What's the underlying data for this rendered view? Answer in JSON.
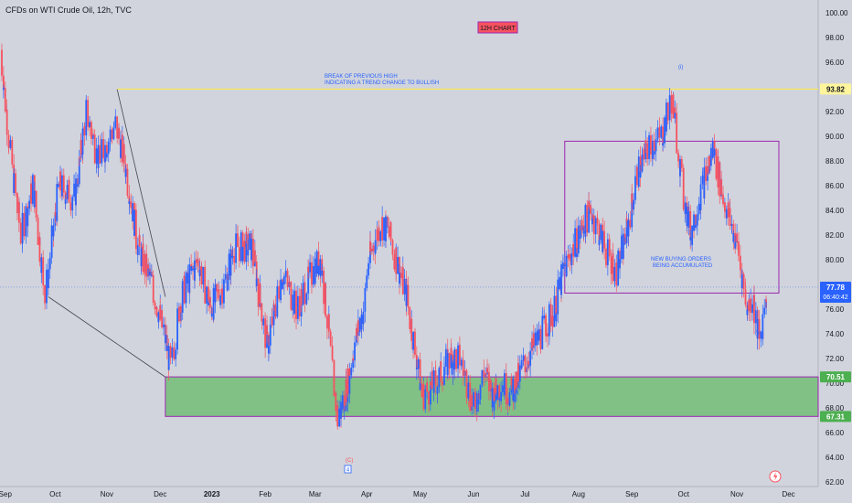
{
  "symbol_title": "CFDs on WTI Crude Oil, 12h, TVC",
  "chart_badge": "12H CHART",
  "price_tags": [
    {
      "label": "93.82",
      "value": 93.82,
      "bg": "#fff59d",
      "fg": "#131722"
    },
    {
      "label": "70.51",
      "value": 70.51,
      "bg": "#4caf50",
      "fg": "#ffffff"
    },
    {
      "label": "67.31",
      "value": 67.31,
      "bg": "#4caf50",
      "fg": "#ffffff"
    }
  ],
  "last_price": {
    "label": "77.78",
    "countdown": "06:40:42",
    "value": 77.78,
    "bg": "#2962ff",
    "fg": "#ffffff"
  },
  "annotations": {
    "break_high_line1": "BREAK OF PREVIOUS HIGH",
    "break_high_line2": "INDICATING A TREND CHANGE TO BULLISH",
    "buying_line1": "NEW BUYING ORDERS",
    "buying_line2": "BEING ACCUMULATED",
    "wave_i": "(i)",
    "wave_ii": "(ii)",
    "wave_c": "(C)",
    "wave_4": "4"
  },
  "colors": {
    "up": "#2962ff",
    "down": "#f7525f",
    "wick_up": "#4caf50",
    "zone_fill": "#66bb6a",
    "zone_border": "#9c27b0",
    "box_border": "#9c27b0",
    "hline": "#ffeb3b",
    "lastline": "#2962ff"
  },
  "chart_data": {
    "type": "candlestick",
    "title": "CFDs on WTI Crude Oil, 12h, TVC",
    "x_axis": {
      "ticks": [
        "Sep",
        "Oct",
        "Nov",
        "Dec",
        "2023",
        "Feb",
        "Mar",
        "Apr",
        "May",
        "Jun",
        "Jul",
        "Aug",
        "Sep",
        "Oct",
        "Nov",
        "Dec"
      ],
      "start": "2022-09",
      "end": "2023-12"
    },
    "y_axis": {
      "range": [
        62,
        100
      ],
      "ticks": [
        62,
        64,
        66,
        68,
        70,
        72,
        74,
        76,
        78,
        80,
        82,
        84,
        86,
        88,
        90,
        92,
        94,
        96,
        98,
        100
      ]
    },
    "grid": false,
    "series": [
      {
        "name": "close",
        "points": [
          {
            "x": "2022-09-01",
            "y": 97
          },
          {
            "x": "2022-09-08",
            "y": 87
          },
          {
            "x": "2022-09-13",
            "y": 82
          },
          {
            "x": "2022-09-20",
            "y": 86
          },
          {
            "x": "2022-09-27",
            "y": 77
          },
          {
            "x": "2022-10-05",
            "y": 86
          },
          {
            "x": "2022-10-14",
            "y": 85
          },
          {
            "x": "2022-10-21",
            "y": 92
          },
          {
            "x": "2022-10-28",
            "y": 88
          },
          {
            "x": "2022-11-07",
            "y": 91
          },
          {
            "x": "2022-11-12",
            "y": 88
          },
          {
            "x": "2022-11-20",
            "y": 81
          },
          {
            "x": "2022-11-28",
            "y": 78
          },
          {
            "x": "2022-12-05",
            "y": 74
          },
          {
            "x": "2022-12-09",
            "y": 71
          },
          {
            "x": "2022-12-15",
            "y": 77
          },
          {
            "x": "2022-12-25",
            "y": 80
          },
          {
            "x": "2023-01-01",
            "y": 76
          },
          {
            "x": "2023-01-09",
            "y": 78
          },
          {
            "x": "2023-01-15",
            "y": 81
          },
          {
            "x": "2023-01-25",
            "y": 81
          },
          {
            "x": "2023-02-03",
            "y": 73
          },
          {
            "x": "2023-02-12",
            "y": 79
          },
          {
            "x": "2023-02-20",
            "y": 76
          },
          {
            "x": "2023-03-01",
            "y": 79
          },
          {
            "x": "2023-03-06",
            "y": 80
          },
          {
            "x": "2023-03-10",
            "y": 75
          },
          {
            "x": "2023-03-16",
            "y": 67
          },
          {
            "x": "2023-03-20",
            "y": 69
          },
          {
            "x": "2023-03-27",
            "y": 74
          },
          {
            "x": "2023-03-31",
            "y": 76
          },
          {
            "x": "2023-04-03",
            "y": 80
          },
          {
            "x": "2023-04-10",
            "y": 83
          },
          {
            "x": "2023-04-15",
            "y": 82
          },
          {
            "x": "2023-04-25",
            "y": 77
          },
          {
            "x": "2023-05-04",
            "y": 69
          },
          {
            "x": "2023-05-12",
            "y": 70
          },
          {
            "x": "2023-05-20",
            "y": 72
          },
          {
            "x": "2023-05-26",
            "y": 72
          },
          {
            "x": "2023-06-03",
            "y": 68
          },
          {
            "x": "2023-06-09",
            "y": 71
          },
          {
            "x": "2023-06-14",
            "y": 69
          },
          {
            "x": "2023-06-20",
            "y": 70
          },
          {
            "x": "2023-06-24",
            "y": 69
          },
          {
            "x": "2023-07-04",
            "y": 72
          },
          {
            "x": "2023-07-12",
            "y": 74
          },
          {
            "x": "2023-07-20",
            "y": 76
          },
          {
            "x": "2023-07-25",
            "y": 79
          },
          {
            "x": "2023-08-03",
            "y": 82
          },
          {
            "x": "2023-08-10",
            "y": 84
          },
          {
            "x": "2023-08-18",
            "y": 81
          },
          {
            "x": "2023-08-25",
            "y": 79
          },
          {
            "x": "2023-09-01",
            "y": 83
          },
          {
            "x": "2023-09-06",
            "y": 87
          },
          {
            "x": "2023-09-12",
            "y": 89
          },
          {
            "x": "2023-09-20",
            "y": 90
          },
          {
            "x": "2023-09-26",
            "y": 93
          },
          {
            "x": "2023-09-28",
            "y": 91
          },
          {
            "x": "2023-10-03",
            "y": 85
          },
          {
            "x": "2023-10-07",
            "y": 82
          },
          {
            "x": "2023-10-12",
            "y": 85
          },
          {
            "x": "2023-10-20",
            "y": 89
          },
          {
            "x": "2023-10-26",
            "y": 85
          },
          {
            "x": "2023-11-03",
            "y": 81
          },
          {
            "x": "2023-11-09",
            "y": 76
          },
          {
            "x": "2023-11-12",
            "y": 77
          },
          {
            "x": "2023-11-16",
            "y": 73
          },
          {
            "x": "2023-11-20",
            "y": 77.78
          }
        ]
      }
    ],
    "horizontal_levels": [
      93.82,
      77.78
    ],
    "zones": [
      {
        "type": "demand",
        "from": 67.31,
        "to": 70.51,
        "x_start": "2022-12-05",
        "x_end": "2023-11-27"
      }
    ],
    "boxes": [
      {
        "x_start": "2023-07-25",
        "x_end": "2023-11-27",
        "y_low": 77.3,
        "y_high": 89.6
      }
    ],
    "trendlines": [
      {
        "points": [
          {
            "x": "2022-09-28",
            "y": 77
          },
          {
            "x": "2022-12-05",
            "y": 70.5
          }
        ]
      },
      {
        "points": [
          {
            "x": "2022-11-07",
            "y": 93.8
          },
          {
            "x": "2022-12-05",
            "y": 77
          }
        ]
      }
    ]
  }
}
